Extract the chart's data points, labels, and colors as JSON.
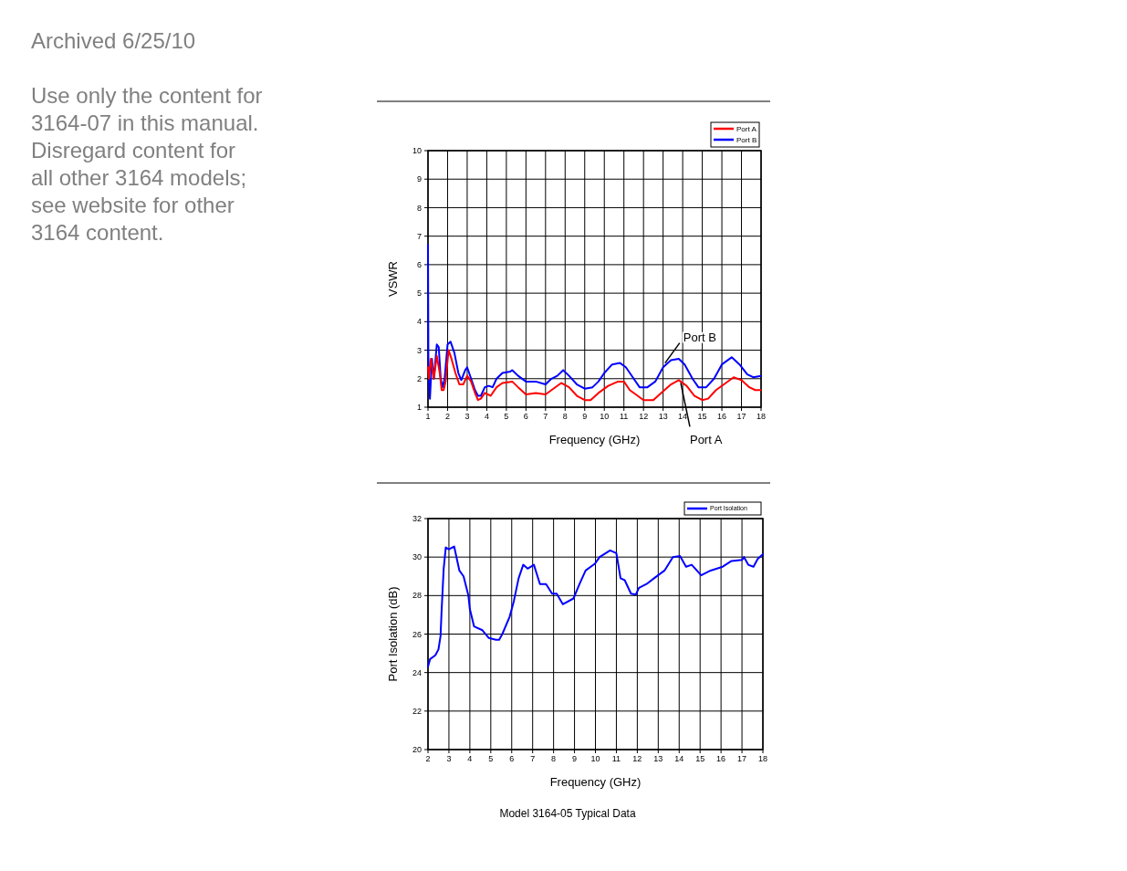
{
  "chart_data": [
    {
      "type": "line",
      "xlabel": "Frequency (GHz)",
      "ylabel": "VSWR",
      "xlim": [
        1,
        18
      ],
      "ylim": [
        1,
        10
      ],
      "xticks": [
        1,
        2,
        3,
        4,
        5,
        6,
        7,
        8,
        9,
        10,
        11,
        12,
        13,
        14,
        15,
        16,
        17,
        18
      ],
      "yticks": [
        1,
        2,
        3,
        4,
        5,
        6,
        7,
        8,
        9,
        10
      ],
      "grid": true,
      "legend": "top right",
      "marker": "none",
      "line_style": "solid",
      "series": [
        {
          "name": "Port A",
          "color": "#ff0000",
          "x": [
            1.0,
            1.05,
            1.15,
            1.3,
            1.45,
            1.6,
            1.7,
            1.8,
            1.9,
            2.05,
            2.2,
            2.4,
            2.6,
            2.8,
            3.0,
            3.2,
            3.4,
            3.55,
            3.7,
            3.9,
            4.2,
            4.5,
            4.8,
            5.3,
            5.6,
            6.0,
            6.5,
            7.0,
            7.4,
            7.8,
            8.2,
            8.6,
            9.0,
            9.3,
            9.7,
            10.2,
            10.7,
            11.0,
            11.3,
            11.7,
            12.0,
            12.5,
            12.9,
            13.4,
            13.8,
            14.2,
            14.6,
            15.0,
            15.3,
            15.7,
            16.2,
            16.6,
            17.0,
            17.4,
            17.7,
            18.0
          ],
          "values": [
            2.4,
            2.0,
            2.7,
            2.0,
            2.8,
            2.2,
            1.6,
            1.6,
            1.9,
            3.0,
            2.7,
            2.2,
            1.8,
            1.8,
            2.1,
            1.9,
            1.5,
            1.25,
            1.3,
            1.5,
            1.4,
            1.7,
            1.85,
            1.9,
            1.7,
            1.45,
            1.5,
            1.45,
            1.65,
            1.85,
            1.7,
            1.4,
            1.25,
            1.25,
            1.5,
            1.75,
            1.9,
            1.9,
            1.6,
            1.4,
            1.25,
            1.25,
            1.5,
            1.8,
            1.95,
            1.75,
            1.4,
            1.25,
            1.3,
            1.6,
            1.85,
            2.05,
            1.95,
            1.7,
            1.6,
            1.6
          ]
        },
        {
          "name": "Port B",
          "color": "#0000ff",
          "x": [
            1.0,
            1.02,
            1.05,
            1.1,
            1.2,
            1.3,
            1.45,
            1.55,
            1.65,
            1.75,
            1.85,
            2.0,
            2.15,
            2.35,
            2.55,
            2.7,
            2.9,
            3.0,
            3.2,
            3.4,
            3.55,
            3.7,
            3.9,
            4.1,
            4.3,
            4.5,
            4.8,
            5.2,
            5.3,
            5.6,
            6.0,
            6.5,
            7.0,
            7.3,
            7.6,
            7.9,
            8.2,
            8.6,
            9.0,
            9.4,
            9.7,
            10.0,
            10.4,
            10.8,
            11.1,
            11.5,
            11.8,
            12.2,
            12.6,
            13.0,
            13.4,
            13.8,
            14.1,
            14.5,
            14.8,
            15.2,
            15.6,
            16.0,
            16.5,
            16.9,
            17.3,
            17.6,
            18.0
          ],
          "values": [
            6.7,
            2.8,
            2.0,
            1.3,
            2.7,
            2.0,
            3.2,
            3.1,
            2.0,
            1.7,
            2.0,
            3.2,
            3.3,
            2.9,
            2.2,
            1.95,
            2.3,
            2.4,
            2.0,
            1.6,
            1.4,
            1.4,
            1.7,
            1.75,
            1.7,
            2.0,
            2.2,
            2.25,
            2.3,
            2.1,
            1.9,
            1.9,
            1.8,
            2.0,
            2.1,
            2.3,
            2.1,
            1.8,
            1.65,
            1.7,
            1.9,
            2.2,
            2.5,
            2.55,
            2.4,
            2.0,
            1.7,
            1.7,
            1.9,
            2.4,
            2.65,
            2.7,
            2.5,
            2.0,
            1.7,
            1.7,
            2.0,
            2.5,
            2.75,
            2.5,
            2.15,
            2.05,
            2.1
          ]
        }
      ],
      "annotations": [
        "Archived 6/25/10",
        "Use only the content for 3164-07 in this manual. Disregard content for all other 3164 models; see website for other 3164 content.",
        {
          "text": "Port B",
          "x": 13.1,
          "y": 2.55
        },
        {
          "text": "Port A",
          "x": 13.9,
          "y": 1.85
        }
      ]
    },
    {
      "type": "line",
      "xlabel": "Frequency (GHz)",
      "ylabel": "Port Isolation (dB)",
      "xlim": [
        2,
        18
      ],
      "ylim": [
        20,
        32
      ],
      "xticks": [
        2,
        3,
        4,
        5,
        6,
        7,
        8,
        9,
        10,
        11,
        12,
        13,
        14,
        15,
        16,
        17,
        18
      ],
      "yticks": [
        20,
        22,
        24,
        26,
        28,
        30,
        32
      ],
      "grid": true,
      "legend": "top right",
      "marker": "none",
      "line_style": "solid",
      "series": [
        {
          "name": "Port Isolation",
          "color": "#0000ff",
          "x": [
            2.0,
            2.1,
            2.35,
            2.5,
            2.6,
            2.65,
            2.75,
            2.85,
            3.0,
            3.25,
            3.5,
            3.7,
            3.93,
            4.0,
            4.2,
            4.6,
            4.9,
            5.25,
            5.4,
            5.55,
            5.9,
            6.1,
            6.33,
            6.55,
            6.76,
            7.06,
            7.35,
            7.64,
            7.93,
            8.15,
            8.44,
            8.95,
            9.24,
            9.53,
            9.97,
            10.2,
            10.7,
            11.0,
            11.2,
            11.4,
            11.7,
            11.93,
            12.08,
            12.44,
            12.8,
            13.3,
            13.7,
            14.04,
            14.33,
            14.6,
            15.05,
            15.5,
            16.08,
            16.5,
            17.0,
            17.1,
            17.3,
            17.55,
            17.75,
            18.0
          ],
          "values": [
            24.3,
            24.7,
            24.9,
            25.2,
            25.9,
            27.2,
            29.4,
            30.5,
            30.4,
            30.55,
            29.3,
            29.0,
            28.0,
            27.3,
            26.4,
            26.2,
            25.8,
            25.7,
            25.7,
            26.0,
            26.9,
            27.7,
            28.9,
            29.6,
            29.4,
            29.6,
            28.6,
            28.6,
            28.1,
            28.1,
            27.55,
            27.85,
            28.6,
            29.3,
            29.65,
            30.0,
            30.35,
            30.2,
            28.9,
            28.8,
            28.1,
            28.05,
            28.4,
            28.6,
            28.9,
            29.3,
            30.0,
            30.05,
            29.5,
            29.6,
            29.05,
            29.3,
            29.5,
            29.8,
            29.85,
            30.0,
            29.6,
            29.5,
            29.9,
            30.15
          ]
        }
      ],
      "annotations": [
        "Model 3164-05 Typical Data"
      ]
    }
  ]
}
